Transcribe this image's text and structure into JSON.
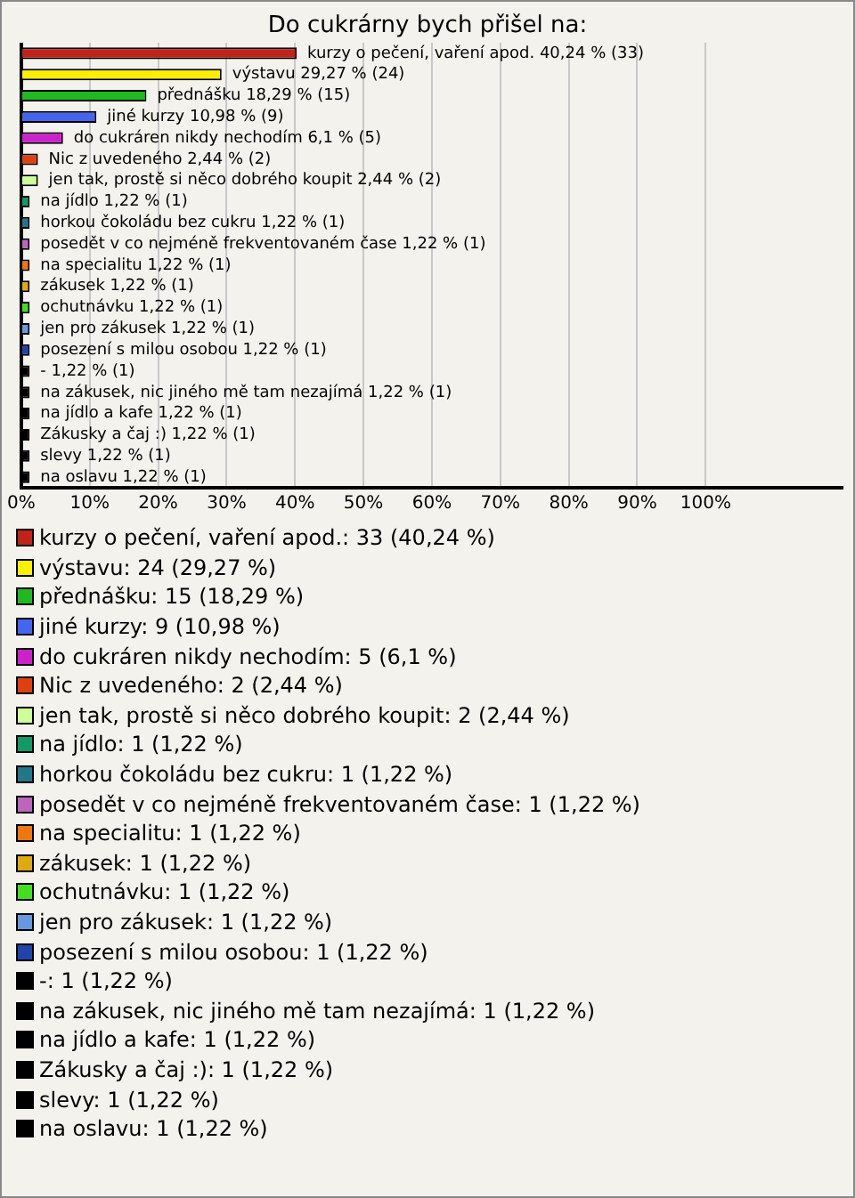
{
  "chart_data": {
    "type": "bar",
    "orientation": "horizontal",
    "title": "Do cukrárny bych přišel na:",
    "categories": [
      null,
      null,
      null,
      null,
      null,
      null,
      null,
      null,
      null,
      null,
      null,
      null,
      null,
      null,
      null,
      null,
      null,
      null,
      null,
      null,
      null
    ],
    "values": [
      40.24,
      29.27,
      18.29,
      10.98,
      6.1,
      2.44,
      2.44,
      1.22,
      1.22,
      1.22,
      1.22,
      1.22,
      1.22,
      1.22,
      1.22,
      1.22,
      1.22,
      1.22,
      1.22,
      1.22,
      1.22
    ],
    "colors": [
      "#c0231c",
      "#ffee00",
      "#22b822",
      "#4466ee",
      "#cc22cc",
      "#e04010",
      "#ccff99",
      "#119966",
      "#227788",
      "#bb66bb",
      "#ee7711",
      "#ddaa11",
      "#44dd22",
      "#6699dd",
      "#2244aa",
      "#000000",
      "#000000",
      "#000000",
      "#000000",
      "#000000",
      "#000000"
    ],
    "value_labels": [
      "kurzy o pečení, vaření apod. 40,24 % (33)",
      "výstavu 29,27 % (24)",
      "přednášku 18,29 % (15)",
      "jiné kurzy 10,98 % (9)",
      "do cukráren nikdy nechodím 6,1 % (5)",
      "Nic z uvedeného 2,44 % (2)",
      "jen tak, prostě si něco dobrého koupit 2,44 % (2)",
      "na jídlo 1,22 % (1)",
      "horkou čokoládu bez cukru 1,22 % (1)",
      "posedět v co nejméně frekventovaném čase 1,22 % (1)",
      "na specialitu 1,22 % (1)",
      "zákusek 1,22 % (1)",
      "ochutnávku 1,22 % (1)",
      "jen pro zákusek 1,22 % (1)",
      "posezení s milou osobou 1,22 % (1)",
      "- 1,22 % (1)",
      "na zákusek, nic jiného mě tam nezajímá 1,22 % (1)",
      "na jídlo a kafe 1,22 % (1)",
      "Zákusky a čaj :) 1,22 % (1)",
      "slevy 1,22 % (1)",
      "na oslavu 1,22 % (1)"
    ],
    "xlim": [
      0,
      120
    ],
    "xticks": [
      {
        "value": 0,
        "label": "0%"
      },
      {
        "value": 10,
        "label": "10%"
      },
      {
        "value": 20,
        "label": "20%"
      },
      {
        "value": 30,
        "label": "30%"
      },
      {
        "value": 40,
        "label": "40%"
      },
      {
        "value": 50,
        "label": "50%"
      },
      {
        "value": 60,
        "label": "60%"
      },
      {
        "value": 70,
        "label": "70%"
      },
      {
        "value": 80,
        "label": "80%"
      },
      {
        "value": 90,
        "label": "90%"
      },
      {
        "value": 100,
        "label": "100%"
      }
    ],
    "grid": "x",
    "annotations": [
      "kurzy o pečení, vaření apod.: 33 (40,24 %)",
      "výstavu: 24 (29,27 %)",
      "přednášku: 15 (18,29 %)",
      "jiné kurzy: 9 (10,98 %)",
      "do cukráren nikdy nechodím: 5 (6,1 %)",
      "Nic z uvedeného: 2 (2,44 %)",
      "jen tak, prostě si něco dobrého koupit: 2 (2,44 %)",
      "na jídlo: 1 (1,22 %)",
      "horkou čokoládu bez cukru: 1 (1,22 %)",
      "posedět v co nejméně frekventovaném čase: 1 (1,22 %)",
      "na specialitu: 1 (1,22 %)",
      "zákusek: 1 (1,22 %)",
      "ochutnávku: 1 (1,22 %)",
      "jen pro zákusek: 1 (1,22 %)",
      "posezení s milou osobou: 1 (1,22 %)",
      "-: 1 (1,22 %)",
      "na zákusek, nic jiného mě tam nezajímá: 1 (1,22 %)",
      "na jídlo a kafe: 1 (1,22 %)",
      "Zákusky a čaj :): 1 (1,22 %)",
      "slevy: 1 (1,22 %)",
      "na oslavu: 1 (1,22 %)"
    ]
  }
}
